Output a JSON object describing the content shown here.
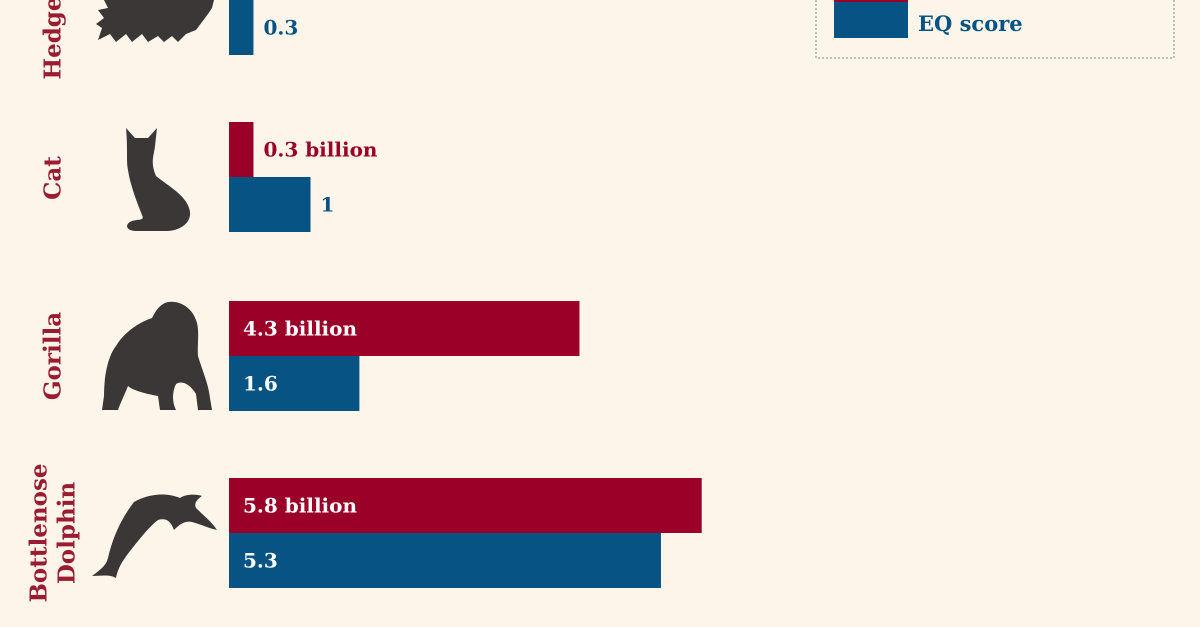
{
  "chart_data": {
    "type": "bar",
    "orientation": "horizontal",
    "categories": [
      "Hedgehog",
      "Cat",
      "Gorilla",
      "Bottlenose Dolphin"
    ],
    "series": [
      {
        "name": "",
        "values": [
          null,
          0.3,
          4.3,
          5.8
        ],
        "labels": [
          "",
          "0.3 billion",
          "4.3 billion",
          "5.8 billion"
        ]
      },
      {
        "name": "EQ score",
        "values": [
          0.3,
          1,
          1.6,
          5.3
        ],
        "labels": [
          "0.3",
          "1",
          "1.6",
          "5.3"
        ]
      }
    ],
    "legend": {
      "placement": "top-right",
      "entries": [
        "EQ score"
      ]
    },
    "grid": false
  },
  "category_labels": [
    {
      "lines": [
        "Hedgehog"
      ],
      "icon": "hedgehog-icon"
    },
    {
      "lines": [
        "Cat"
      ],
      "icon": "cat-icon"
    },
    {
      "lines": [
        "Gorilla"
      ],
      "icon": "gorilla-icon"
    },
    {
      "lines": [
        "Bottlenose",
        "Dolphin"
      ],
      "icon": "dolphin-icon"
    }
  ],
  "colors": {
    "background": "#fdf5ea",
    "series_red": "#9b0028",
    "series_blue": "#065384",
    "label_red": "#9b1b30",
    "icon": "#3a3736"
  }
}
